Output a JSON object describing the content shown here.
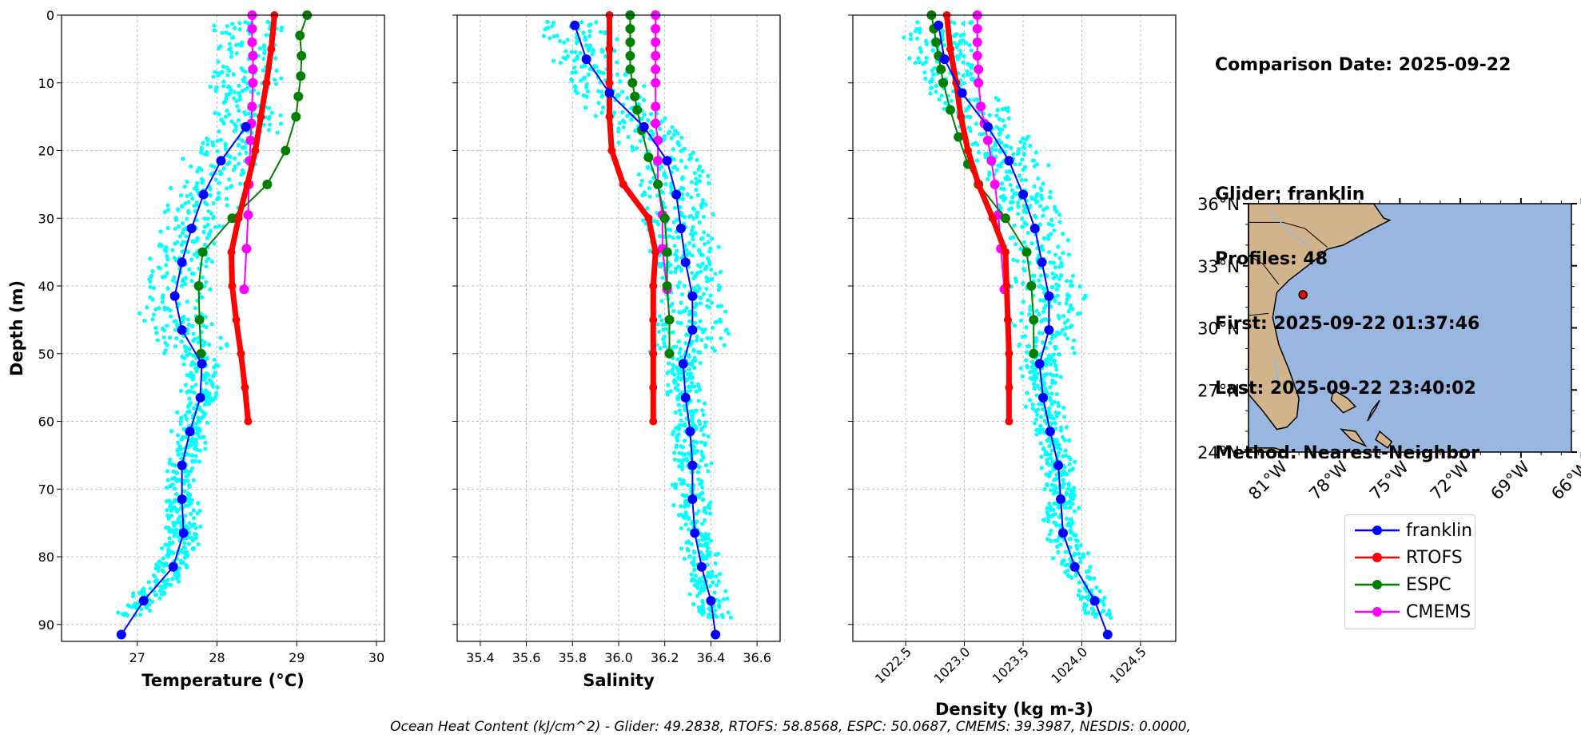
{
  "info": {
    "comparison_date": "Comparison Date: 2025-09-22",
    "glider": "Glider: franklin",
    "profiles": "Profiles: 48",
    "first": "First: 2025-09-22 01:37:46",
    "last": "Last: 2025-09-22 23:40:02",
    "method": "Method: Nearest-Neighbor"
  },
  "footer": {
    "text": "Ocean Heat Content (kJ/cm^2) - Glider: 49.2838,  RTOFS: 58.8568,  ESPC: 50.0687,  CMEMS: 39.3987,  NESDIS: 0.0000,"
  },
  "colors": {
    "franklin": "#0000ff",
    "RTOFS": "#ff0000",
    "ESPC": "#008000",
    "CMEMS": "#ff00ff",
    "profiles": "#00ffff",
    "land": "#d2b48c",
    "ocean": "#98b6e0"
  },
  "legend": [
    "franklin",
    "RTOFS",
    "ESPC",
    "CMEMS"
  ],
  "chart_data": [
    {
      "type": "line",
      "title": "",
      "xlabel": "Temperature (°C)",
      "ylabel": "Depth (m)",
      "xlim": [
        26.05,
        30.1
      ],
      "ylim": [
        92.5,
        0
      ],
      "xticks": [
        27,
        28,
        29,
        30
      ],
      "yticks": [
        0,
        10,
        20,
        30,
        40,
        50,
        60,
        70,
        80,
        90
      ],
      "grid": true,
      "series": [
        {
          "name": "franklin",
          "depth": [
            16.5,
            21.5,
            26.5,
            31.5,
            36.5,
            41.5,
            46.5,
            51.5,
            56.5,
            61.5,
            66.5,
            71.5,
            76.5,
            81.5,
            86.5,
            91.5
          ],
          "values": [
            28.36,
            28.05,
            27.83,
            27.68,
            27.56,
            27.47,
            27.56,
            27.81,
            27.79,
            27.66,
            27.56,
            27.56,
            27.58,
            27.45,
            27.08,
            26.8
          ]
        },
        {
          "name": "RTOFS",
          "depth": [
            0,
            5,
            10,
            15,
            20,
            25,
            30,
            35,
            40,
            45,
            50,
            55,
            60
          ],
          "values": [
            28.72,
            28.68,
            28.62,
            28.55,
            28.48,
            28.38,
            28.27,
            28.18,
            28.19,
            28.24,
            28.3,
            28.35,
            28.39
          ]
        },
        {
          "name": "ESPC",
          "depth": [
            0,
            3,
            6,
            9,
            12,
            15,
            20,
            25,
            30,
            35,
            40,
            45,
            50
          ],
          "values": [
            29.13,
            29.04,
            29.06,
            29.05,
            29.02,
            28.99,
            28.86,
            28.63,
            28.19,
            27.82,
            27.77,
            27.78,
            27.8
          ]
        },
        {
          "name": "CMEMS",
          "depth": [
            0,
            2,
            4,
            6,
            8,
            10,
            13.5,
            16,
            18.5,
            21.5,
            25,
            29.5,
            34.5,
            40.5
          ],
          "values": [
            28.44,
            28.44,
            28.44,
            28.45,
            28.45,
            28.45,
            28.44,
            28.43,
            28.42,
            28.41,
            28.4,
            28.39,
            28.37,
            28.34
          ]
        }
      ]
    },
    {
      "type": "line",
      "title": "",
      "xlabel": "Salinity",
      "ylabel": "",
      "xlim": [
        35.3,
        36.7
      ],
      "ylim": [
        92.5,
        0
      ],
      "xticks": [
        35.4,
        35.6,
        35.8,
        36.0,
        36.2,
        36.4,
        36.6
      ],
      "yticks": [
        0,
        10,
        20,
        30,
        40,
        50,
        60,
        70,
        80,
        90
      ],
      "grid": true,
      "series": [
        {
          "name": "franklin",
          "depth": [
            1.5,
            6.5,
            11.5,
            16.5,
            21.5,
            26.5,
            31.5,
            36.5,
            41.5,
            46.5,
            51.5,
            56.5,
            61.5,
            66.5,
            71.5,
            76.5,
            81.5,
            86.5,
            91.5
          ],
          "values": [
            35.81,
            35.86,
            35.96,
            36.11,
            36.21,
            36.25,
            36.27,
            36.29,
            36.32,
            36.32,
            36.28,
            36.29,
            36.31,
            36.32,
            36.32,
            36.33,
            36.36,
            36.4,
            36.42
          ]
        },
        {
          "name": "RTOFS",
          "depth": [
            0,
            5,
            10,
            15,
            20,
            25,
            30,
            35,
            40,
            45,
            50,
            55,
            60
          ],
          "values": [
            35.96,
            35.96,
            35.96,
            35.96,
            35.97,
            36.02,
            36.13,
            36.16,
            36.15,
            36.15,
            36.15,
            36.15,
            36.15
          ]
        },
        {
          "name": "ESPC",
          "depth": [
            0,
            2,
            4,
            6,
            8,
            10,
            12,
            14,
            17,
            21,
            25,
            30,
            35,
            40,
            45,
            50
          ],
          "values": [
            36.05,
            36.05,
            36.05,
            36.05,
            36.05,
            36.06,
            36.07,
            36.08,
            36.1,
            36.13,
            36.17,
            36.2,
            36.21,
            36.21,
            36.22,
            36.22
          ]
        },
        {
          "name": "CMEMS",
          "depth": [
            0,
            2,
            4,
            6,
            8,
            10,
            13.5,
            16,
            18.5,
            21.5,
            25,
            29.5,
            34.5,
            40.5
          ],
          "values": [
            36.16,
            36.16,
            36.16,
            36.16,
            36.16,
            36.16,
            36.16,
            36.16,
            36.17,
            36.17,
            36.17,
            36.19,
            36.19,
            36.21
          ]
        }
      ]
    },
    {
      "type": "line",
      "title": "",
      "xlabel": "Density (kg m-3)",
      "ylabel": "",
      "xlim": [
        1022.05,
        1024.8
      ],
      "ylim": [
        92.5,
        0
      ],
      "xticks": [
        1022.5,
        1023.0,
        1023.5,
        1024.0,
        1024.5
      ],
      "yticks": [
        0,
        10,
        20,
        30,
        40,
        50,
        60,
        70,
        80,
        90
      ],
      "grid": true,
      "series": [
        {
          "name": "franklin",
          "depth": [
            1.5,
            6.5,
            11.5,
            16.5,
            21.5,
            26.5,
            31.5,
            36.5,
            41.5,
            46.5,
            51.5,
            56.5,
            61.5,
            66.5,
            71.5,
            76.5,
            81.5,
            86.5,
            91.5
          ],
          "values": [
            1022.78,
            1022.83,
            1022.98,
            1023.2,
            1023.38,
            1023.5,
            1023.6,
            1023.66,
            1023.72,
            1023.72,
            1023.64,
            1023.67,
            1023.73,
            1023.8,
            1023.82,
            1023.84,
            1023.94,
            1024.11,
            1024.22
          ]
        },
        {
          "name": "RTOFS",
          "depth": [
            0,
            5,
            10,
            15,
            20,
            25,
            30,
            35,
            40,
            45,
            50,
            55,
            60
          ],
          "values": [
            1022.85,
            1022.88,
            1022.93,
            1022.97,
            1023.03,
            1023.12,
            1023.24,
            1023.35,
            1023.36,
            1023.37,
            1023.38,
            1023.38,
            1023.38
          ]
        },
        {
          "name": "ESPC",
          "depth": [
            0,
            2,
            4,
            6,
            8,
            10,
            14,
            18,
            22,
            25,
            30,
            35,
            40,
            45,
            50
          ],
          "values": [
            1022.72,
            1022.74,
            1022.76,
            1022.78,
            1022.8,
            1022.82,
            1022.88,
            1022.95,
            1023.03,
            1023.12,
            1023.35,
            1023.53,
            1023.57,
            1023.59,
            1023.59
          ]
        },
        {
          "name": "CMEMS",
          "depth": [
            0,
            2,
            4,
            6,
            8,
            10,
            13.5,
            16,
            18.5,
            21.5,
            25,
            29.5,
            34.5,
            40.5
          ],
          "values": [
            1023.11,
            1023.11,
            1023.11,
            1023.11,
            1023.12,
            1023.12,
            1023.14,
            1023.17,
            1023.2,
            1023.23,
            1023.26,
            1023.29,
            1023.31,
            1023.34
          ]
        }
      ]
    },
    {
      "type": "map",
      "title": "",
      "lat_ticks": [
        "24°N",
        "27°N",
        "30°N",
        "33°N",
        "36°N"
      ],
      "lon_ticks": [
        "81°W",
        "78°W",
        "75°W",
        "72°W",
        "69°W",
        "66°W"
      ],
      "lat_range": [
        24,
        36
      ],
      "lon_range": [
        -82.5,
        -66.5
      ],
      "glider_position": {
        "lon": -79.8,
        "lat": 31.6
      }
    }
  ]
}
